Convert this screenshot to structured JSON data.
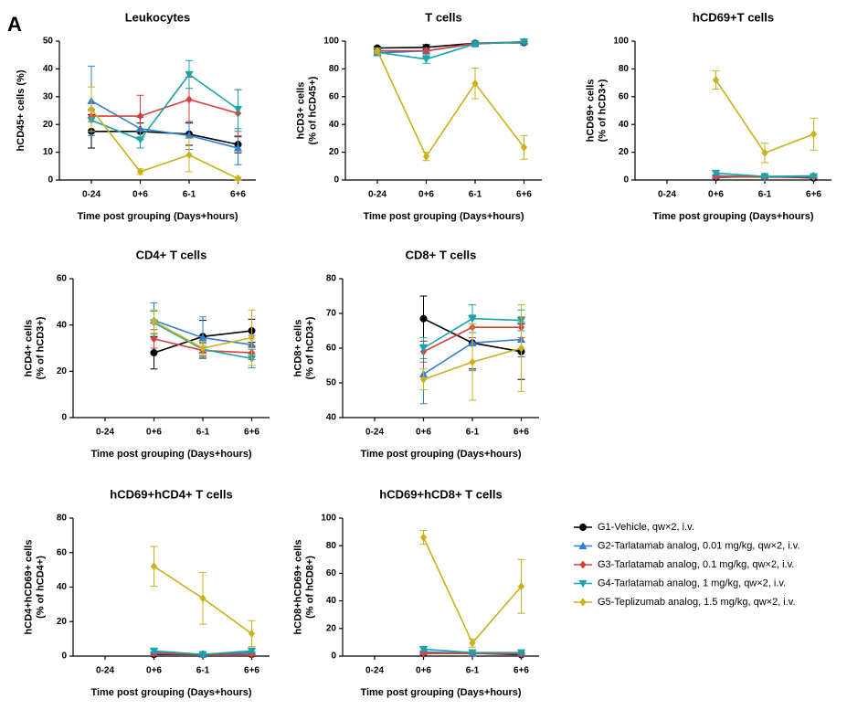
{
  "panel_label": "A",
  "legend": {
    "entries": [
      {
        "name": "G1-Vehicle, qw×2, i.v.",
        "color": "#000000",
        "marker": "circle"
      },
      {
        "name": "G2-Tarlatamab analog, 0.01 mg/kg, qw×2, i.v.",
        "color": "#2f7fd6",
        "marker": "triangle-up"
      },
      {
        "name": "G3-Tarlatamab analog, 0.1 mg/kg, qw×2, i.v.",
        "color": "#d9403a",
        "marker": "diamond"
      },
      {
        "name": "G4-Tarlatamab analog, 1 mg/kg, qw×2, i.v.",
        "color": "#17a5a5",
        "marker": "triangle-down"
      },
      {
        "name": "G5-Teplizumab analog, 1.5 mg/kg, qw×2, i.v.",
        "color": "#c9b21a",
        "marker": "diamond"
      }
    ]
  },
  "chart_data": [
    {
      "type": "line",
      "title": "Leukocytes",
      "ylabel": [
        "hCD45+ cells (%)"
      ],
      "xlabel": "Time post grouping (Days+hours)",
      "categories": [
        "0-24",
        "0+6",
        "6-1",
        "6+6"
      ],
      "ylim": [
        0,
        50
      ],
      "yticks": [
        0,
        10,
        20,
        30,
        40,
        50
      ],
      "series": [
        {
          "values": [
            17.5,
            17.5,
            16.5,
            12.8
          ],
          "errors": [
            6,
            3,
            4,
            3
          ]
        },
        {
          "values": [
            28.5,
            18.5,
            16,
            11.5
          ],
          "errors": [
            12.5,
            4,
            5,
            6
          ]
        },
        {
          "values": [
            23,
            23,
            29,
            24
          ],
          "errors": [
            2,
            7.5,
            8,
            8.5
          ]
        },
        {
          "values": [
            21.5,
            14.5,
            38,
            25.5
          ],
          "errors": [
            4,
            3,
            5,
            7
          ]
        },
        {
          "values": [
            25.5,
            3,
            9,
            0.5
          ],
          "errors": [
            8,
            1,
            6,
            0.5
          ]
        }
      ]
    },
    {
      "type": "line",
      "title": "T cells",
      "ylabel": [
        "hCD3+ cells",
        "(% of hCD45+)"
      ],
      "xlabel": "Time post grouping (Days+hours)",
      "categories": [
        "0-24",
        "0+6",
        "6-1",
        "6+6"
      ],
      "ylim": [
        0,
        100
      ],
      "yticks": [
        0,
        20,
        40,
        60,
        80,
        100
      ],
      "series": [
        {
          "values": [
            95,
            95.5,
            98.5,
            99
          ],
          "errors": [
            1,
            2,
            1,
            1
          ]
        },
        {
          "values": [
            91.5,
            93,
            98,
            99.5
          ],
          "errors": [
            1,
            2,
            1,
            0.5
          ]
        },
        {
          "values": [
            93,
            93,
            98.5,
            99.5
          ],
          "errors": [
            1,
            1,
            1,
            0.5
          ]
        },
        {
          "values": [
            92,
            87,
            98,
            99.5
          ],
          "errors": [
            1,
            3,
            1,
            0.5
          ]
        },
        {
          "values": [
            93,
            17,
            69.5,
            23.5
          ],
          "errors": [
            2,
            3,
            11,
            8.5
          ]
        }
      ]
    },
    {
      "type": "line",
      "title": "hCD69+T cells",
      "ylabel": [
        "hCD69+ cells",
        "(% of hCD3+)"
      ],
      "xlabel": "Time post grouping (Days+hours)",
      "categories": [
        "0-24",
        "0+6",
        "6-1",
        "6+6"
      ],
      "ylim": [
        0,
        100
      ],
      "yticks": [
        0,
        20,
        40,
        60,
        80,
        100
      ],
      "series": [
        {
          "values": [
            null,
            2,
            2.5,
            1.5
          ],
          "errors": [
            null,
            0.5,
            0.5,
            0.5
          ]
        },
        {
          "values": [
            null,
            3,
            2.5,
            3
          ],
          "errors": [
            null,
            0.5,
            0.5,
            0.5
          ]
        },
        {
          "values": [
            null,
            2.5,
            2,
            2
          ],
          "errors": [
            null,
            0.5,
            0.5,
            0.5
          ]
        },
        {
          "values": [
            null,
            5,
            2.5,
            2.5
          ],
          "errors": [
            null,
            1,
            0.5,
            0.5
          ]
        },
        {
          "values": [
            null,
            72,
            19.5,
            33
          ],
          "errors": [
            null,
            6.5,
            7,
            11.5
          ]
        }
      ]
    },
    {
      "type": "line",
      "title": "CD4+ T cells",
      "ylabel": [
        "hCD4+ cells",
        "(% of hCD3+)"
      ],
      "xlabel": "Time post grouping (Days+hours)",
      "categories": [
        "0-24",
        "0+6",
        "6-1",
        "6+6"
      ],
      "ylim": [
        0,
        60
      ],
      "yticks": [
        0,
        20,
        40,
        60
      ],
      "series": [
        {
          "values": [
            null,
            28,
            35,
            37.5
          ],
          "errors": [
            null,
            7,
            7,
            5
          ]
        },
        {
          "values": [
            null,
            42,
            34.5,
            31.5
          ],
          "errors": [
            null,
            7.5,
            9,
            4
          ]
        },
        {
          "values": [
            null,
            34,
            29,
            28
          ],
          "errors": [
            null,
            4,
            3,
            3
          ]
        },
        {
          "values": [
            null,
            41,
            29.5,
            25.5
          ],
          "errors": [
            null,
            5,
            3,
            4
          ]
        },
        {
          "values": [
            null,
            41.5,
            30,
            34.5
          ],
          "errors": [
            null,
            5,
            3,
            12
          ]
        }
      ]
    },
    {
      "type": "line",
      "title": "CD8+ T cells",
      "ylabel": [
        "hCD8+ cells",
        "(% of hCD3+)"
      ],
      "xlabel": "Time post grouping (Days+hours)",
      "categories": [
        "0-24",
        "0+6",
        "6-1",
        "6+6"
      ],
      "ylim": [
        40,
        80
      ],
      "yticks": [
        40,
        50,
        60,
        70,
        80
      ],
      "series": [
        {
          "values": [
            null,
            68.5,
            61.5,
            59
          ],
          "errors": [
            null,
            6.5,
            7.5,
            8
          ]
        },
        {
          "values": [
            null,
            52.5,
            61.5,
            62.5
          ],
          "errors": [
            null,
            8.5,
            8,
            5
          ]
        },
        {
          "values": [
            null,
            59,
            66,
            66
          ],
          "errors": [
            null,
            3,
            3,
            3
          ]
        },
        {
          "values": [
            null,
            60,
            68.5,
            68
          ],
          "errors": [
            null,
            3,
            4,
            3
          ]
        },
        {
          "values": [
            null,
            51,
            56,
            60
          ],
          "errors": [
            null,
            3,
            11,
            12.5
          ]
        }
      ]
    },
    {
      "type": "line",
      "title": "hCD69+hCD4+ T cells",
      "ylabel": [
        "hCD4+hCD69+ cells",
        "(% of hCD4+)"
      ],
      "xlabel": "Time post grouping (Days+hours)",
      "categories": [
        "0-24",
        "0+6",
        "6-1",
        "6+6"
      ],
      "ylim": [
        0,
        80
      ],
      "yticks": [
        0,
        20,
        40,
        60,
        80
      ],
      "series": [
        {
          "values": [
            null,
            1,
            1,
            1
          ],
          "errors": [
            null,
            0.5,
            0.5,
            0.5
          ]
        },
        {
          "values": [
            null,
            2,
            1,
            2
          ],
          "errors": [
            null,
            0.5,
            0.5,
            0.5
          ]
        },
        {
          "values": [
            null,
            1.5,
            1,
            1
          ],
          "errors": [
            null,
            0.5,
            0.5,
            0.5
          ]
        },
        {
          "values": [
            null,
            3,
            1,
            3
          ],
          "errors": [
            null,
            1,
            0.5,
            1
          ]
        },
        {
          "values": [
            null,
            52,
            33.5,
            13
          ],
          "errors": [
            null,
            11.5,
            15,
            7.5
          ]
        }
      ]
    },
    {
      "type": "line",
      "title": "hCD69+hCD8+ T cells",
      "ylabel": [
        "hCD8+hCD69+ cells",
        "(% of hCD8+)"
      ],
      "xlabel": "Time post grouping (Days+hours)",
      "categories": [
        "0-24",
        "0+6",
        "6-1",
        "6+6"
      ],
      "ylim": [
        0,
        100
      ],
      "yticks": [
        0,
        20,
        40,
        60,
        80,
        100
      ],
      "series": [
        {
          "values": [
            null,
            2,
            2,
            1
          ],
          "errors": [
            null,
            0.5,
            0.5,
            0.5
          ]
        },
        {
          "values": [
            null,
            3,
            2,
            2
          ],
          "errors": [
            null,
            0.5,
            0.5,
            0.5
          ]
        },
        {
          "values": [
            null,
            2,
            2,
            1.5
          ],
          "errors": [
            null,
            0.5,
            0.5,
            0.5
          ]
        },
        {
          "values": [
            null,
            5,
            2.5,
            2.5
          ],
          "errors": [
            null,
            1,
            0.5,
            0.5
          ]
        },
        {
          "values": [
            null,
            86,
            9.5,
            50.5
          ],
          "errors": [
            null,
            5,
            3,
            19.5
          ]
        }
      ]
    }
  ]
}
